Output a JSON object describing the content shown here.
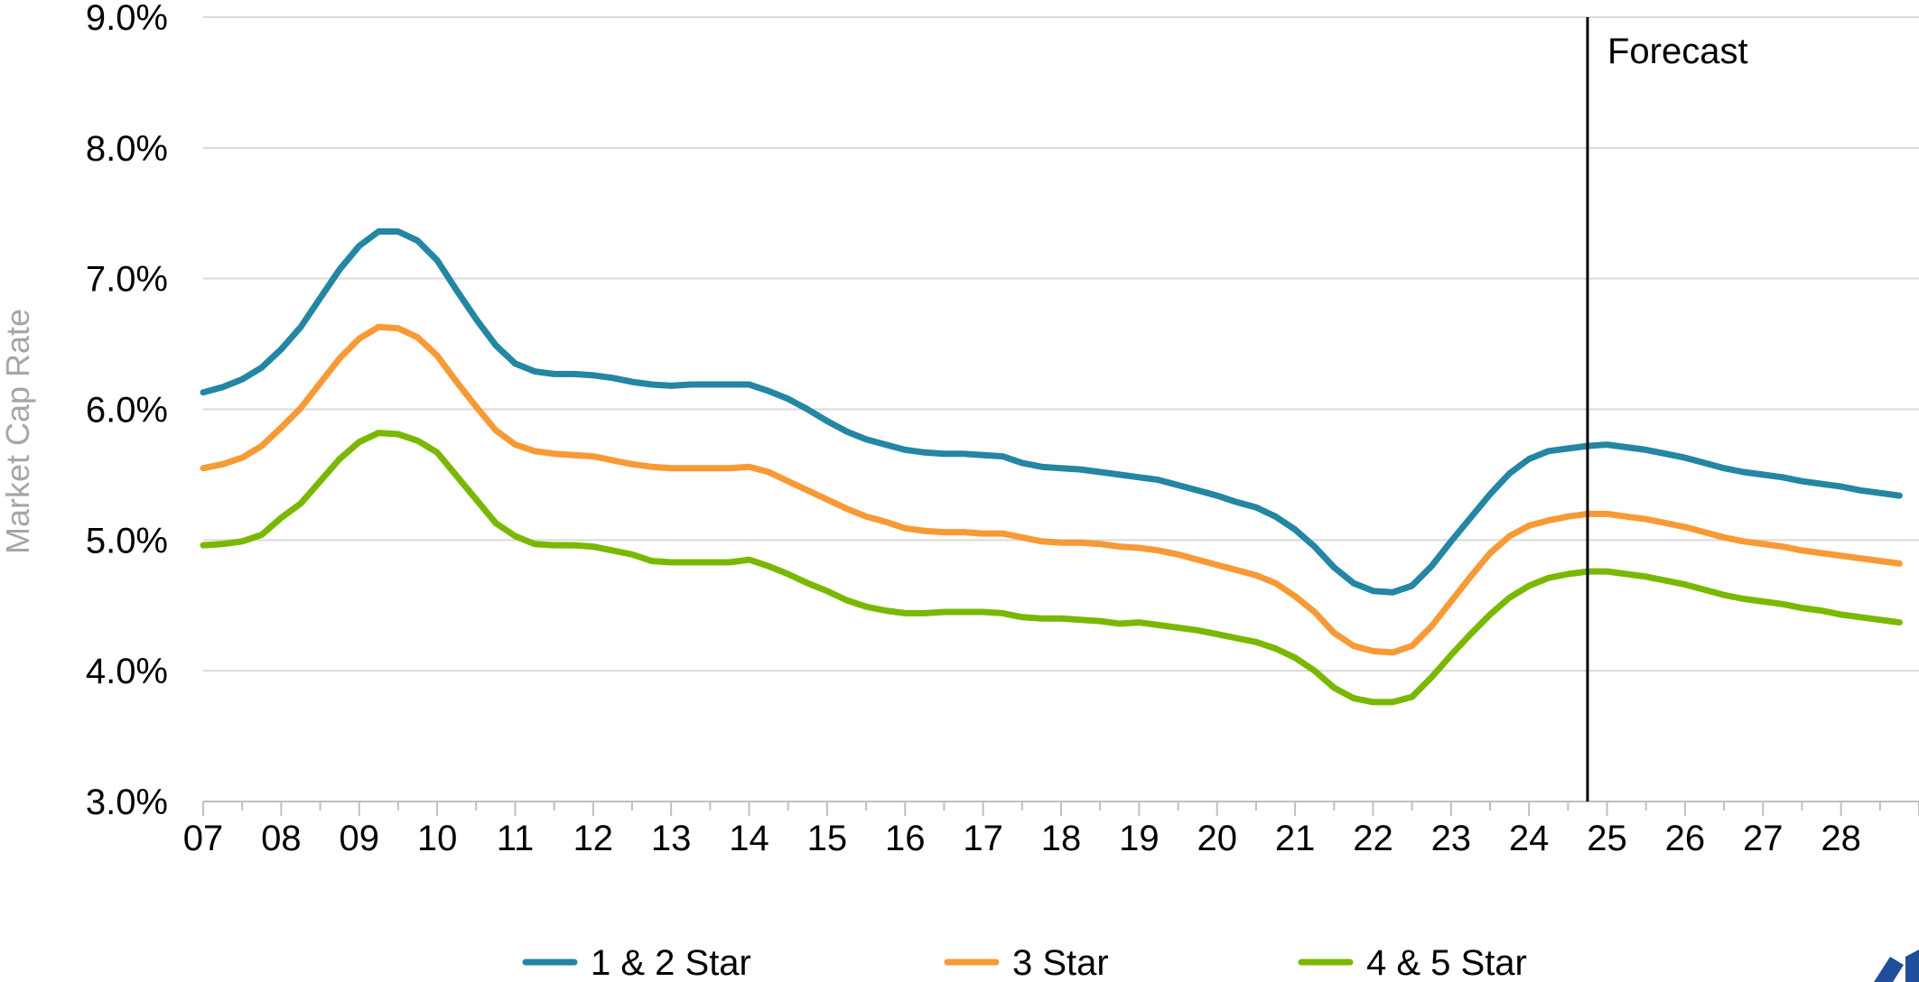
{
  "chart_data": {
    "type": "line",
    "xlabel": "",
    "ylabel": "Market Cap Rate",
    "ylim": [
      3.0,
      9.0
    ],
    "y_ticks": [
      3.0,
      4.0,
      5.0,
      6.0,
      7.0,
      8.0,
      9.0
    ],
    "y_tick_labels": [
      "3.0%",
      "4.0%",
      "5.0%",
      "6.0%",
      "7.0%",
      "8.0%",
      "9.0%"
    ],
    "xlim": [
      7.0,
      29.0
    ],
    "x_tick_labels": [
      "07",
      "08",
      "09",
      "10",
      "11",
      "12",
      "13",
      "14",
      "15",
      "16",
      "17",
      "18",
      "19",
      "20",
      "21",
      "22",
      "23",
      "24",
      "25",
      "26",
      "27",
      "28"
    ],
    "grid": "horizontal",
    "legend_position": "bottom",
    "forecast_line": {
      "x": 24.75,
      "label": "Forecast"
    },
    "x": [
      7.0,
      7.25,
      7.5,
      7.75,
      8.0,
      8.25,
      8.5,
      8.75,
      9.0,
      9.25,
      9.5,
      9.75,
      10.0,
      10.25,
      10.5,
      10.75,
      11.0,
      11.25,
      11.5,
      11.75,
      12.0,
      12.25,
      12.5,
      12.75,
      13.0,
      13.25,
      13.5,
      13.75,
      14.0,
      14.25,
      14.5,
      14.75,
      15.0,
      15.25,
      15.5,
      15.75,
      16.0,
      16.25,
      16.5,
      16.75,
      17.0,
      17.25,
      17.5,
      17.75,
      18.0,
      18.25,
      18.5,
      18.75,
      19.0,
      19.25,
      19.5,
      19.75,
      20.0,
      20.25,
      20.5,
      20.75,
      21.0,
      21.25,
      21.5,
      21.75,
      22.0,
      22.25,
      22.5,
      22.75,
      23.0,
      23.25,
      23.5,
      23.75,
      24.0,
      24.25,
      24.5,
      24.75,
      25.0,
      25.25,
      25.5,
      25.75,
      26.0,
      26.25,
      26.5,
      26.75,
      27.0,
      27.25,
      27.5,
      27.75,
      28.0,
      28.25,
      28.5,
      28.75
    ],
    "series": [
      {
        "name": "1 & 2 Star",
        "color": "#2386a3",
        "values": [
          6.13,
          6.17,
          6.23,
          6.32,
          6.46,
          6.63,
          6.85,
          7.07,
          7.25,
          7.36,
          7.36,
          7.29,
          7.14,
          6.91,
          6.69,
          6.49,
          6.35,
          6.29,
          6.27,
          6.27,
          6.26,
          6.24,
          6.21,
          6.19,
          6.18,
          6.19,
          6.19,
          6.19,
          6.19,
          6.14,
          6.08,
          6.0,
          5.91,
          5.83,
          5.77,
          5.73,
          5.69,
          5.67,
          5.66,
          5.66,
          5.65,
          5.64,
          5.59,
          5.56,
          5.55,
          5.54,
          5.52,
          5.5,
          5.48,
          5.46,
          5.42,
          5.38,
          5.34,
          5.29,
          5.25,
          5.18,
          5.08,
          4.95,
          4.79,
          4.67,
          4.61,
          4.6,
          4.65,
          4.8,
          4.99,
          5.17,
          5.35,
          5.51,
          5.62,
          5.68,
          5.7,
          5.72,
          5.73,
          5.71,
          5.69,
          5.66,
          5.63,
          5.59,
          5.55,
          5.52,
          5.5,
          5.48,
          5.45,
          5.43,
          5.41,
          5.38,
          5.36,
          5.34
        ]
      },
      {
        "name": "3 Star",
        "color": "#f79a36",
        "values": [
          5.55,
          5.58,
          5.63,
          5.72,
          5.86,
          6.01,
          6.2,
          6.39,
          6.54,
          6.63,
          6.62,
          6.55,
          6.41,
          6.21,
          6.02,
          5.84,
          5.73,
          5.68,
          5.66,
          5.65,
          5.64,
          5.61,
          5.58,
          5.56,
          5.55,
          5.55,
          5.55,
          5.55,
          5.56,
          5.52,
          5.45,
          5.38,
          5.31,
          5.24,
          5.18,
          5.14,
          5.09,
          5.07,
          5.06,
          5.06,
          5.05,
          5.05,
          5.02,
          4.99,
          4.98,
          4.98,
          4.97,
          4.95,
          4.94,
          4.92,
          4.89,
          4.85,
          4.81,
          4.77,
          4.73,
          4.67,
          4.57,
          4.45,
          4.29,
          4.19,
          4.15,
          4.14,
          4.19,
          4.34,
          4.53,
          4.72,
          4.9,
          5.03,
          5.11,
          5.15,
          5.18,
          5.2,
          5.2,
          5.18,
          5.16,
          5.13,
          5.1,
          5.06,
          5.02,
          4.99,
          4.97,
          4.95,
          4.92,
          4.9,
          4.88,
          4.86,
          4.84,
          4.82
        ]
      },
      {
        "name": "4 & 5 Star",
        "color": "#7ab800",
        "values": [
          4.96,
          4.97,
          4.99,
          5.04,
          5.17,
          5.28,
          5.45,
          5.62,
          5.75,
          5.82,
          5.81,
          5.76,
          5.67,
          5.49,
          5.31,
          5.13,
          5.03,
          4.97,
          4.96,
          4.96,
          4.95,
          4.92,
          4.89,
          4.84,
          4.83,
          4.83,
          4.83,
          4.83,
          4.85,
          4.8,
          4.74,
          4.67,
          4.61,
          4.54,
          4.49,
          4.46,
          4.44,
          4.44,
          4.45,
          4.45,
          4.45,
          4.44,
          4.41,
          4.4,
          4.4,
          4.39,
          4.38,
          4.36,
          4.37,
          4.35,
          4.33,
          4.31,
          4.28,
          4.25,
          4.22,
          4.17,
          4.1,
          4.0,
          3.87,
          3.79,
          3.76,
          3.76,
          3.8,
          3.95,
          4.12,
          4.28,
          4.43,
          4.56,
          4.65,
          4.71,
          4.74,
          4.76,
          4.76,
          4.74,
          4.72,
          4.69,
          4.66,
          4.62,
          4.58,
          4.55,
          4.53,
          4.51,
          4.48,
          4.46,
          4.43,
          4.41,
          4.39,
          4.37
        ]
      }
    ]
  }
}
